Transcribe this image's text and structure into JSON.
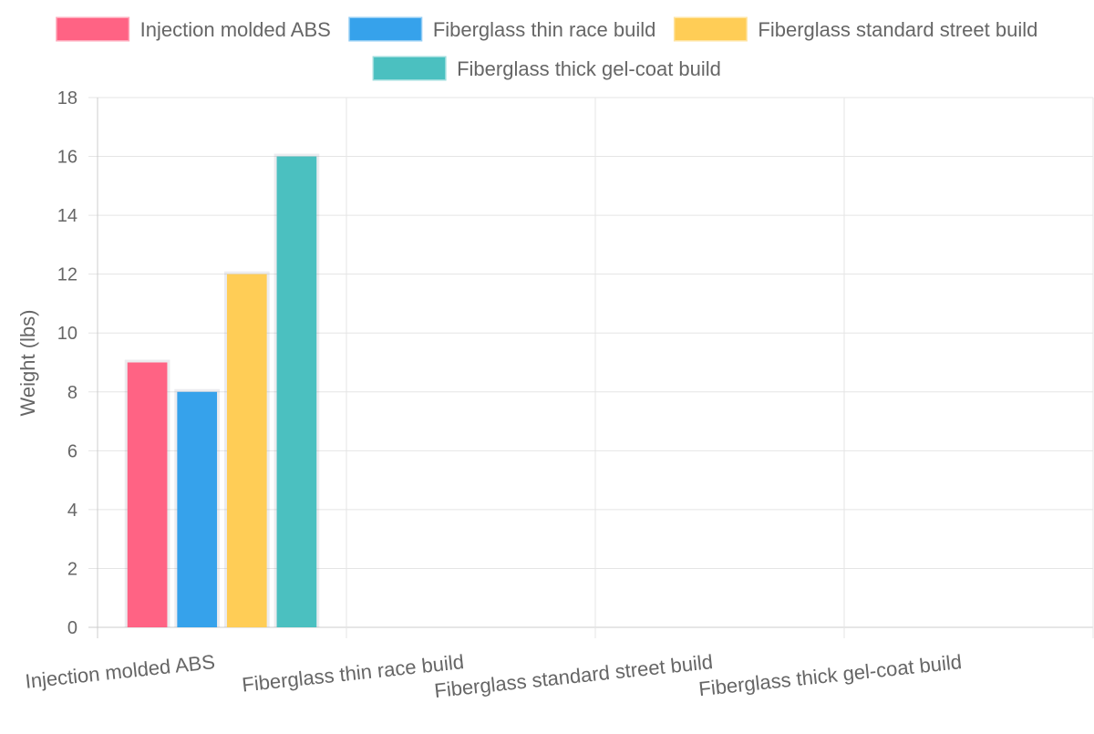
{
  "chart_data": {
    "type": "bar",
    "title": "",
    "categories": [
      "Injection molded ABS",
      "Fiberglass thin race build",
      "Fiberglass standard street build",
      "Fiberglass thick gel-coat build"
    ],
    "series": [
      {
        "name": "Injection molded ABS",
        "color": "#ff6384",
        "values": [
          9,
          null,
          null,
          null
        ]
      },
      {
        "name": "Fiberglass thin race build",
        "color": "#36a2eb",
        "values": [
          8,
          null,
          null,
          null
        ]
      },
      {
        "name": "Fiberglass standard street build",
        "color": "#ffcd56",
        "values": [
          12,
          null,
          null,
          null
        ]
      },
      {
        "name": "Fiberglass thick gel-coat build",
        "color": "#4bc0c0",
        "values": [
          16,
          null,
          null,
          null
        ]
      }
    ],
    "xlabel": "",
    "ylabel": "Weight (lbs)",
    "ylim": [
      0,
      18
    ],
    "yticks": [
      0,
      2,
      4,
      6,
      8,
      10,
      12,
      14,
      16,
      18
    ],
    "grid": true,
    "legend_position": "top"
  }
}
